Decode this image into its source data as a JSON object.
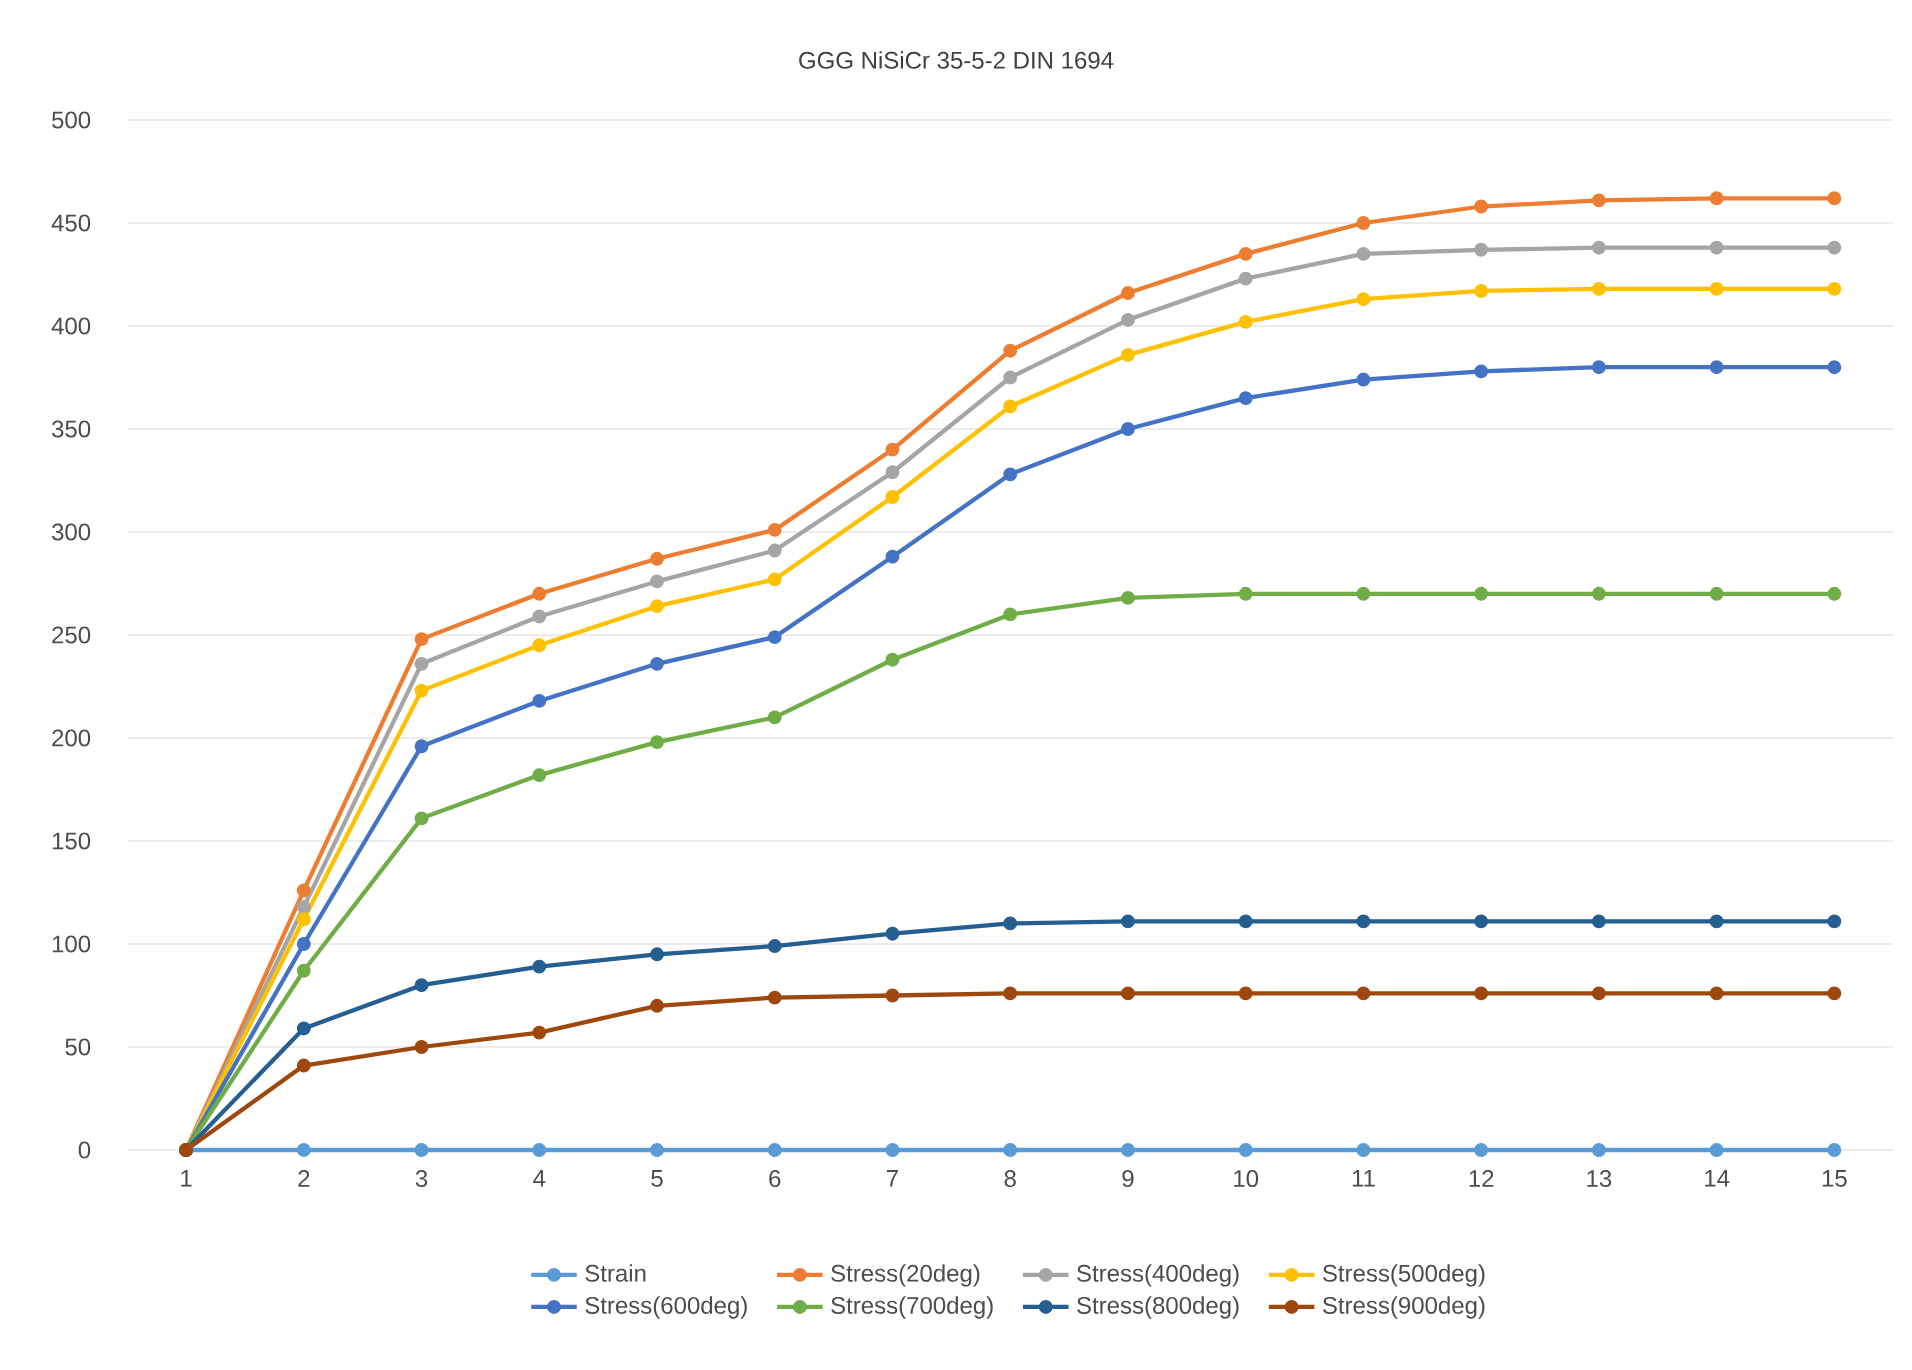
{
  "chart_data": {
    "type": "line",
    "title": "GGG NiSiCr 35-5-2  DIN  1694",
    "categories": [
      "1",
      "2",
      "3",
      "4",
      "5",
      "6",
      "7",
      "8",
      "9",
      "10",
      "11",
      "12",
      "13",
      "14",
      "15"
    ],
    "series": [
      {
        "name": "Strain",
        "color": "#5b9bd5",
        "values": [
          0,
          0,
          0,
          0,
          0,
          0,
          0,
          0,
          0,
          0,
          0,
          0,
          0,
          0,
          0
        ]
      },
      {
        "name": "Stress(20deg)",
        "color": "#ed7d31",
        "values": [
          0,
          126,
          248,
          270,
          287,
          301,
          340,
          388,
          416,
          435,
          450,
          458,
          461,
          462,
          462
        ]
      },
      {
        "name": "Stress(400deg)",
        "color": "#a5a5a5",
        "values": [
          0,
          118,
          236,
          259,
          276,
          291,
          329,
          375,
          403,
          423,
          435,
          437,
          438,
          438,
          438
        ]
      },
      {
        "name": "Stress(500deg)",
        "color": "#ffc000",
        "values": [
          0,
          112,
          223,
          245,
          264,
          277,
          317,
          361,
          386,
          402,
          413,
          417,
          418,
          418,
          418
        ]
      },
      {
        "name": "Stress(600deg)",
        "color": "#4472c4",
        "values": [
          0,
          100,
          196,
          218,
          236,
          249,
          288,
          328,
          350,
          365,
          374,
          378,
          380,
          380,
          380
        ]
      },
      {
        "name": "Stress(700deg)",
        "color": "#70ad47",
        "values": [
          0,
          87,
          161,
          182,
          198,
          210,
          238,
          260,
          268,
          270,
          270,
          270,
          270,
          270,
          270
        ]
      },
      {
        "name": "Stress(800deg)",
        "color": "#255e91",
        "values": [
          0,
          59,
          80,
          89,
          95,
          99,
          105,
          110,
          111,
          111,
          111,
          111,
          111,
          111,
          111
        ]
      },
      {
        "name": "Stress(900deg)",
        "color": "#9e480e",
        "values": [
          0,
          41,
          50,
          57,
          70,
          74,
          75,
          76,
          76,
          76,
          76,
          76,
          76,
          76,
          76
        ]
      }
    ],
    "ylim": [
      0,
      500
    ],
    "yticks": [
      0,
      50,
      100,
      150,
      200,
      250,
      300,
      350,
      400,
      450,
      500
    ],
    "grid": "y",
    "legend": "bottom",
    "marker": "circle",
    "line_style": "solid"
  }
}
